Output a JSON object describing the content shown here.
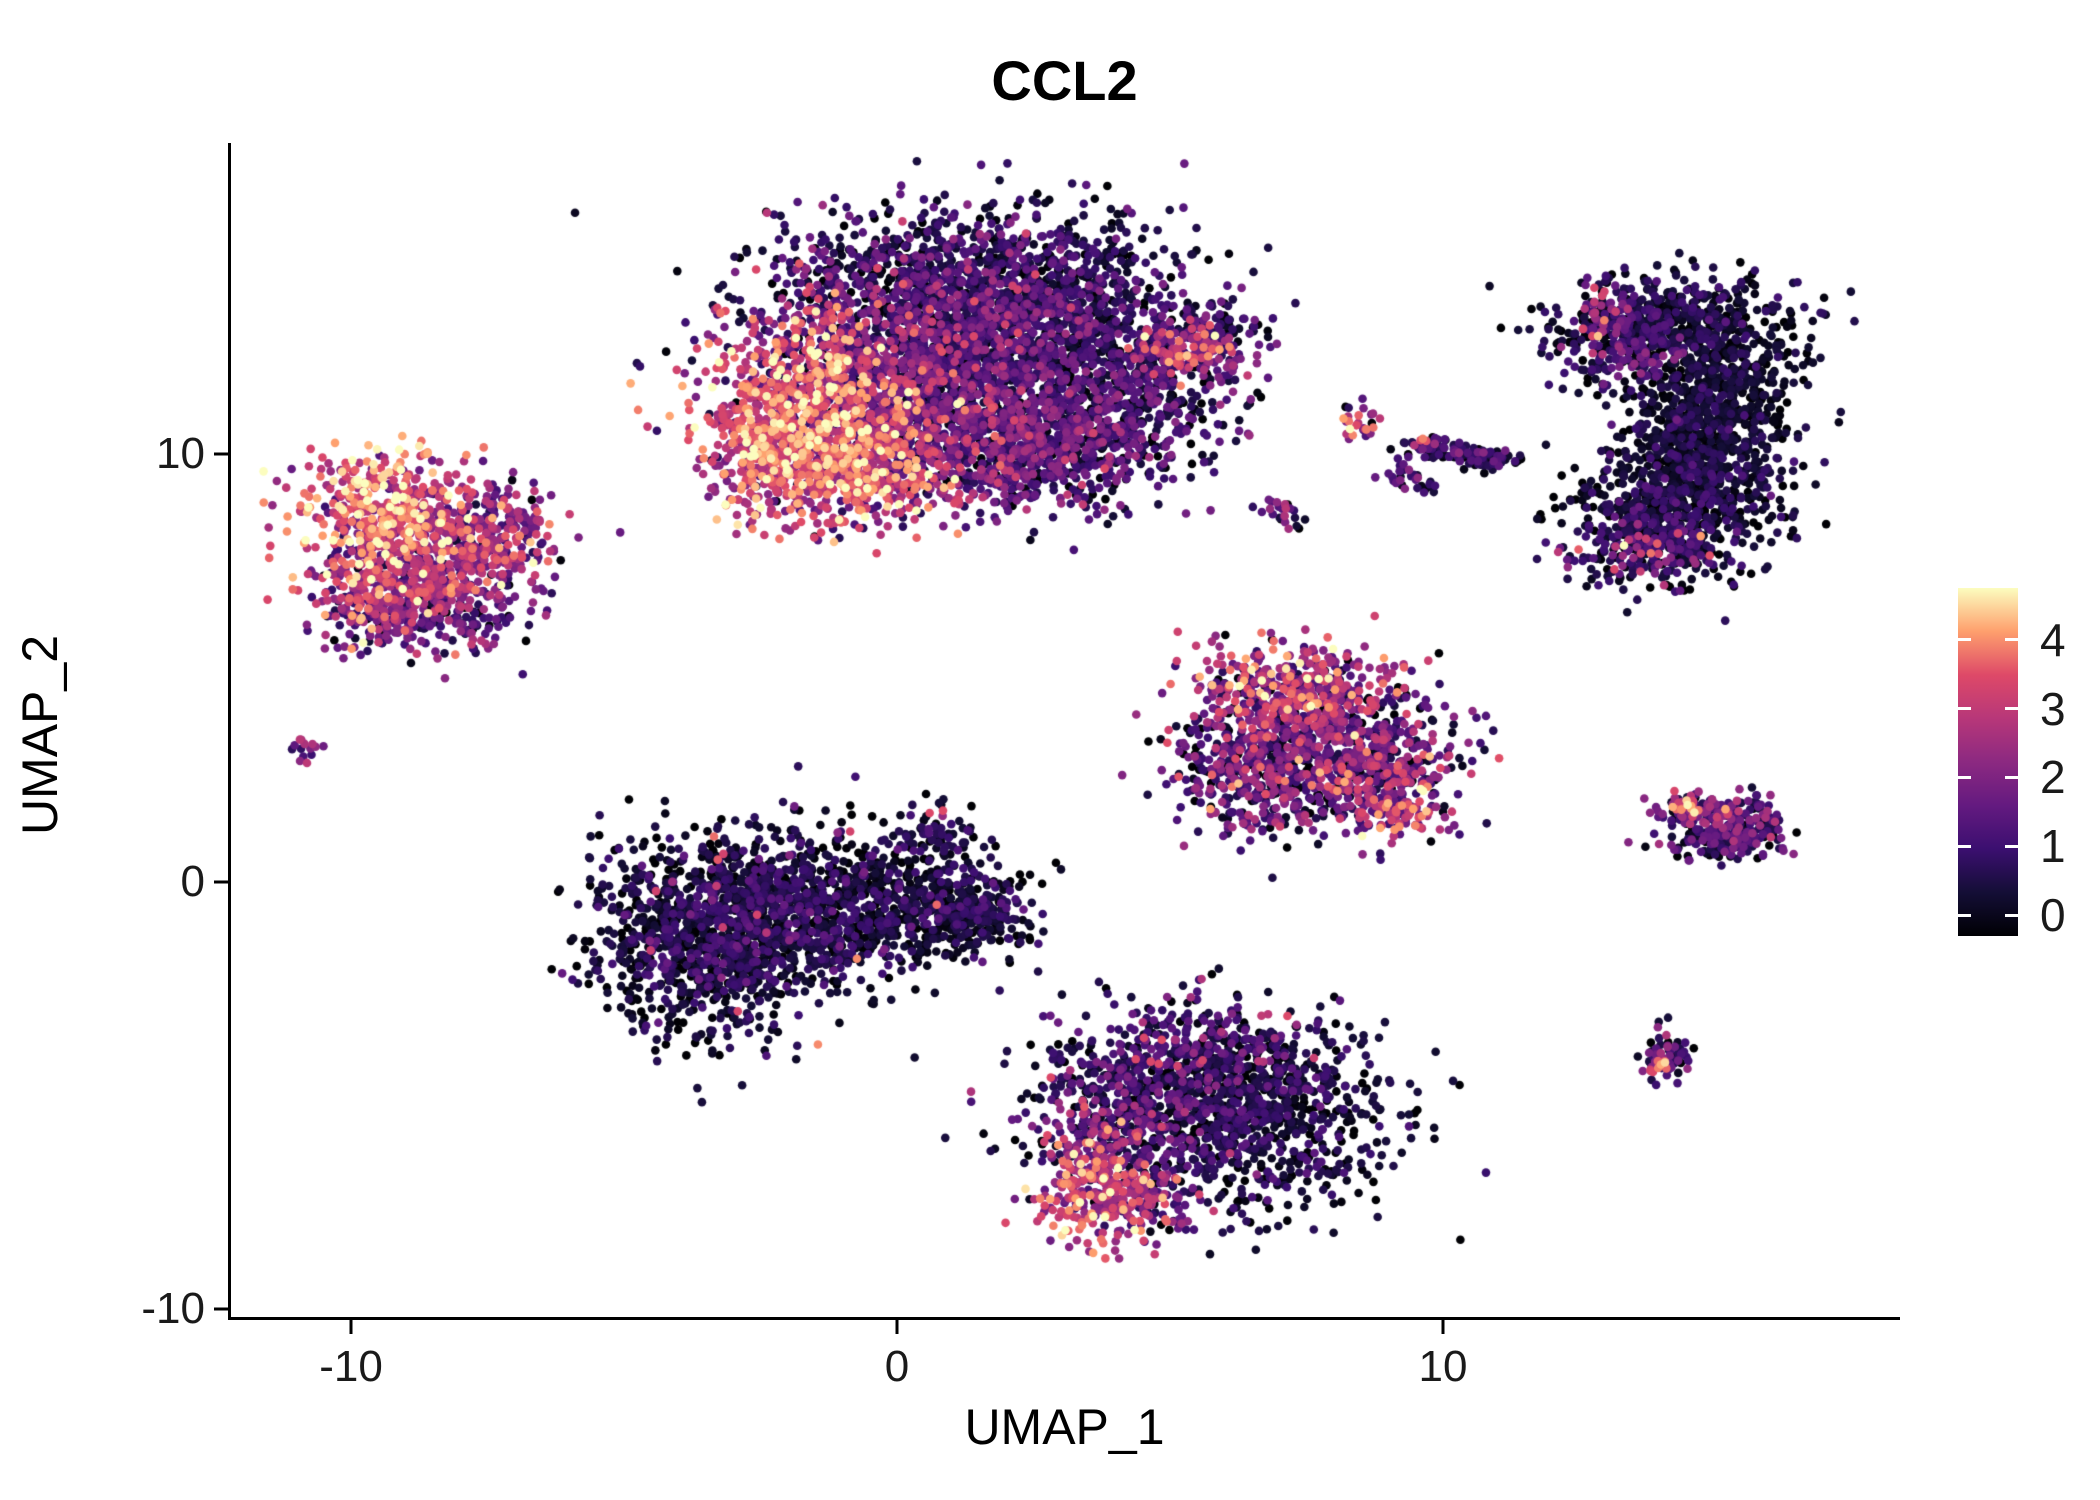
{
  "chart_data": {
    "type": "scatter",
    "title": "CCL2",
    "xlabel": "UMAP_1",
    "ylabel": "UMAP_2",
    "xlim": [
      -12.2,
      18.3
    ],
    "ylim": [
      -10.3,
      17.3
    ],
    "x_ticks": [
      "-10",
      "0",
      "10"
    ],
    "y_ticks": [
      "10",
      "0",
      "-10"
    ],
    "grid": false,
    "point_color_meaning": "CCL2 expression level",
    "legend": {
      "position": "right",
      "ticks": [
        0,
        1,
        2,
        3,
        4
      ],
      "tick_labels": [
        "0",
        "1",
        "2",
        "3",
        "4"
      ],
      "bar_range": [
        -0.3,
        4.75
      ],
      "vmax": 4.6
    },
    "colormap": {
      "name": "magma",
      "stops": [
        [
          0.0,
          "#000004"
        ],
        [
          0.125,
          "#140E36"
        ],
        [
          0.25,
          "#3B0F70"
        ],
        [
          0.375,
          "#641A80"
        ],
        [
          0.5,
          "#8C2981"
        ],
        [
          0.625,
          "#B73779"
        ],
        [
          0.75,
          "#DE4968"
        ],
        [
          0.875,
          "#FE9F6D"
        ],
        [
          1.0,
          "#FCFDBF"
        ]
      ]
    },
    "seed": 42,
    "clusters": [
      {
        "name": "upper-central-myeloid",
        "blobs": [
          {
            "cx": -1.6,
            "cy": 11.0,
            "sx": 1.0,
            "sy": 1.2,
            "n": 900,
            "e": 3.3,
            "es": 0.8
          },
          {
            "cx": -0.6,
            "cy": 9.7,
            "sx": 0.8,
            "sy": 0.55,
            "n": 350,
            "e": 3.1,
            "es": 0.9
          },
          {
            "cx": -2.3,
            "cy": 10.0,
            "sx": 0.5,
            "sy": 0.7,
            "n": 200,
            "e": 2.7,
            "es": 0.9
          },
          {
            "cx": 0.4,
            "cy": 12.4,
            "sx": 1.6,
            "sy": 1.3,
            "n": 1400,
            "e": 1.3,
            "es": 0.85
          },
          {
            "cx": 2.6,
            "cy": 13.0,
            "sx": 1.5,
            "sy": 1.2,
            "n": 1200,
            "e": 0.75,
            "es": 0.65
          },
          {
            "cx": 1.4,
            "cy": 10.4,
            "sx": 1.5,
            "sy": 0.9,
            "n": 800,
            "e": 1.5,
            "es": 0.9
          },
          {
            "cx": 4.2,
            "cy": 11.4,
            "sx": 0.9,
            "sy": 0.9,
            "n": 350,
            "e": 0.9,
            "es": 0.7
          },
          {
            "cx": 1.0,
            "cy": 14.3,
            "sx": 1.8,
            "sy": 0.65,
            "n": 450,
            "e": 0.7,
            "es": 0.55
          },
          {
            "cx": 3.2,
            "cy": 10.0,
            "sx": 0.8,
            "sy": 0.6,
            "n": 250,
            "e": 1.0,
            "es": 0.8
          },
          {
            "cx": 5.3,
            "cy": 12.4,
            "sx": 0.55,
            "sy": 0.3,
            "n": 130,
            "e": 2.7,
            "es": 0.9
          },
          {
            "cx": 5.7,
            "cy": 12.9,
            "sx": 0.5,
            "sy": 0.28,
            "n": 90,
            "e": 0.9,
            "es": 0.7
          }
        ]
      },
      {
        "name": "upper-left-high-expression",
        "blobs": [
          {
            "cx": -9.3,
            "cy": 8.7,
            "sx": 0.75,
            "sy": 0.75,
            "n": 420,
            "e": 3.4,
            "es": 0.9
          },
          {
            "cx": -8.2,
            "cy": 7.3,
            "sx": 0.9,
            "sy": 0.75,
            "n": 400,
            "e": 2.1,
            "es": 1.0
          },
          {
            "cx": -9.6,
            "cy": 7.0,
            "sx": 0.65,
            "sy": 0.65,
            "n": 240,
            "e": 2.6,
            "es": 1.0
          },
          {
            "cx": -7.5,
            "cy": 8.2,
            "sx": 0.6,
            "sy": 0.6,
            "n": 200,
            "e": 2.0,
            "es": 1.0
          },
          {
            "cx": -8.7,
            "cy": 6.1,
            "sx": 0.8,
            "sy": 0.4,
            "n": 150,
            "e": 1.3,
            "es": 0.8
          }
        ]
      },
      {
        "name": "tiny-left-dot",
        "blobs": [
          {
            "cx": -10.8,
            "cy": 3.1,
            "sx": 0.13,
            "sy": 0.16,
            "n": 14,
            "e": 2.3,
            "es": 1.1
          }
        ]
      },
      {
        "name": "central-left-dark",
        "blobs": [
          {
            "cx": -3.6,
            "cy": -1.3,
            "sx": 1.0,
            "sy": 1.15,
            "n": 900,
            "e": 0.5,
            "es": 0.5
          },
          {
            "cx": -1.9,
            "cy": -0.7,
            "sx": 1.2,
            "sy": 0.95,
            "n": 750,
            "e": 0.6,
            "es": 0.55
          },
          {
            "cx": 0.4,
            "cy": -0.5,
            "sx": 1.0,
            "sy": 0.75,
            "n": 450,
            "e": 0.45,
            "es": 0.45
          },
          {
            "cx": 1.5,
            "cy": -0.8,
            "sx": 0.5,
            "sy": 0.4,
            "n": 150,
            "e": 0.5,
            "es": 0.5
          },
          {
            "cx": 0.6,
            "cy": 1.0,
            "sx": 0.35,
            "sy": 0.35,
            "n": 60,
            "e": 0.6,
            "es": 0.5
          },
          {
            "cx": -2.4,
            "cy": -0.8,
            "sx": 1.6,
            "sy": 1.0,
            "n": 18,
            "e": 2.9,
            "es": 0.7
          },
          {
            "cx": 0.7,
            "cy": 1.6,
            "sx": 0.1,
            "sy": 0.1,
            "n": 3,
            "e": 3.3,
            "es": 0.4
          }
        ]
      },
      {
        "name": "central-mixed",
        "blobs": [
          {
            "cx": 7.4,
            "cy": 4.5,
            "sx": 1.0,
            "sy": 0.55,
            "n": 330,
            "e": 2.5,
            "es": 1.0
          },
          {
            "cx": 7.7,
            "cy": 3.1,
            "sx": 1.2,
            "sy": 0.9,
            "n": 700,
            "e": 1.2,
            "es": 1.0
          },
          {
            "cx": 8.8,
            "cy": 2.4,
            "sx": 0.7,
            "sy": 0.6,
            "n": 240,
            "e": 1.8,
            "es": 1.1
          },
          {
            "cx": 6.6,
            "cy": 2.6,
            "sx": 0.7,
            "sy": 0.7,
            "n": 240,
            "e": 1.5,
            "es": 1.0
          },
          {
            "cx": 9.2,
            "cy": 1.6,
            "sx": 0.4,
            "sy": 0.3,
            "n": 60,
            "e": 2.9,
            "es": 0.8
          }
        ]
      },
      {
        "name": "lower-central",
        "blobs": [
          {
            "cx": 5.6,
            "cy": -4.4,
            "sx": 1.5,
            "sy": 0.8,
            "n": 600,
            "e": 0.7,
            "es": 0.6
          },
          {
            "cx": 6.6,
            "cy": -5.8,
            "sx": 1.2,
            "sy": 0.95,
            "n": 620,
            "e": 0.55,
            "es": 0.5
          },
          {
            "cx": 4.3,
            "cy": -5.7,
            "sx": 0.9,
            "sy": 0.9,
            "n": 420,
            "e": 1.2,
            "es": 0.9
          },
          {
            "cx": 3.6,
            "cy": -7.1,
            "sx": 0.5,
            "sy": 0.7,
            "n": 250,
            "e": 2.9,
            "es": 0.9
          },
          {
            "cx": 4.6,
            "cy": -7.6,
            "sx": 0.5,
            "sy": 0.4,
            "n": 100,
            "e": 2.2,
            "es": 1.0
          },
          {
            "cx": 5.6,
            "cy": -3.7,
            "sx": 0.9,
            "sy": 0.4,
            "n": 60,
            "e": 2.0,
            "es": 0.9
          }
        ]
      },
      {
        "name": "right-crescent-dark",
        "blobs": [
          {
            "cx": 14.2,
            "cy": 13.1,
            "sx": 1.1,
            "sy": 0.55,
            "n": 450,
            "e": 0.5,
            "es": 0.5
          },
          {
            "cx": 15.0,
            "cy": 11.4,
            "sx": 0.75,
            "sy": 0.95,
            "n": 600,
            "e": 0.35,
            "es": 0.35
          },
          {
            "cx": 14.6,
            "cy": 9.6,
            "sx": 0.8,
            "sy": 0.8,
            "n": 550,
            "e": 0.4,
            "es": 0.4
          },
          {
            "cx": 13.9,
            "cy": 8.2,
            "sx": 0.8,
            "sy": 0.65,
            "n": 450,
            "e": 0.6,
            "es": 0.6
          },
          {
            "cx": 13.6,
            "cy": 7.7,
            "sx": 0.6,
            "sy": 0.4,
            "n": 45,
            "e": 2.2,
            "es": 0.9
          },
          {
            "cx": 13.2,
            "cy": 12.7,
            "sx": 0.5,
            "sy": 0.6,
            "n": 200,
            "e": 1.0,
            "es": 0.8
          },
          {
            "cx": 12.9,
            "cy": 13.3,
            "sx": 0.3,
            "sy": 0.3,
            "n": 25,
            "e": 2.4,
            "es": 0.8
          }
        ]
      },
      {
        "name": "small-mid-islands",
        "blobs": [
          {
            "cx": 6.9,
            "cy": 8.8,
            "sx": 0.18,
            "sy": 0.18,
            "n": 14,
            "e": 1.4,
            "es": 1.2
          },
          {
            "cx": 7.25,
            "cy": 8.45,
            "sx": 0.15,
            "sy": 0.15,
            "n": 10,
            "e": 1.0,
            "es": 0.9
          },
          {
            "cx": 8.5,
            "cy": 10.8,
            "sx": 0.2,
            "sy": 0.22,
            "n": 26,
            "e": 2.6,
            "es": 1.1
          },
          {
            "cx": 9.3,
            "cy": 9.6,
            "sx": 0.18,
            "sy": 0.15,
            "n": 18,
            "e": 1.2,
            "es": 1.0
          },
          {
            "cx": 9.7,
            "cy": 9.3,
            "sx": 0.15,
            "sy": 0.12,
            "n": 12,
            "e": 1.0,
            "es": 0.9
          },
          {
            "cx": 9.8,
            "cy": 10.2,
            "sx": 0.3,
            "sy": 0.12,
            "n": 55,
            "e": 0.8,
            "es": 0.6
          },
          {
            "cx": 10.4,
            "cy": 10.0,
            "sx": 0.3,
            "sy": 0.12,
            "n": 55,
            "e": 0.7,
            "es": 0.6
          },
          {
            "cx": 10.9,
            "cy": 9.85,
            "sx": 0.28,
            "sy": 0.12,
            "n": 40,
            "e": 0.8,
            "es": 0.6
          },
          {
            "cx": 9.6,
            "cy": 10.3,
            "sx": 0.1,
            "sy": 0.08,
            "n": 4,
            "e": 3.1,
            "es": 0.5
          }
        ]
      },
      {
        "name": "right-chevron",
        "blobs": [
          {
            "cx": 14.85,
            "cy": 1.65,
            "sx": 0.5,
            "sy": 0.22,
            "n": 140,
            "e": 1.5,
            "es": 1.0
          },
          {
            "cx": 15.1,
            "cy": 0.95,
            "sx": 0.5,
            "sy": 0.22,
            "n": 120,
            "e": 1.0,
            "es": 0.8
          },
          {
            "cx": 15.8,
            "cy": 1.3,
            "sx": 0.28,
            "sy": 0.3,
            "n": 60,
            "e": 1.1,
            "es": 0.9
          },
          {
            "cx": 14.45,
            "cy": 1.75,
            "sx": 0.15,
            "sy": 0.15,
            "n": 25,
            "e": 3.1,
            "es": 0.7
          }
        ]
      },
      {
        "name": "right-tiny-dot",
        "blobs": [
          {
            "cx": 14.1,
            "cy": -4.1,
            "sx": 0.27,
            "sy": 0.3,
            "n": 60,
            "e": 1.1,
            "es": 1.0
          },
          {
            "cx": 14.0,
            "cy": -4.25,
            "sx": 0.12,
            "sy": 0.12,
            "n": 15,
            "e": 3.3,
            "es": 0.6
          }
        ]
      }
    ]
  }
}
